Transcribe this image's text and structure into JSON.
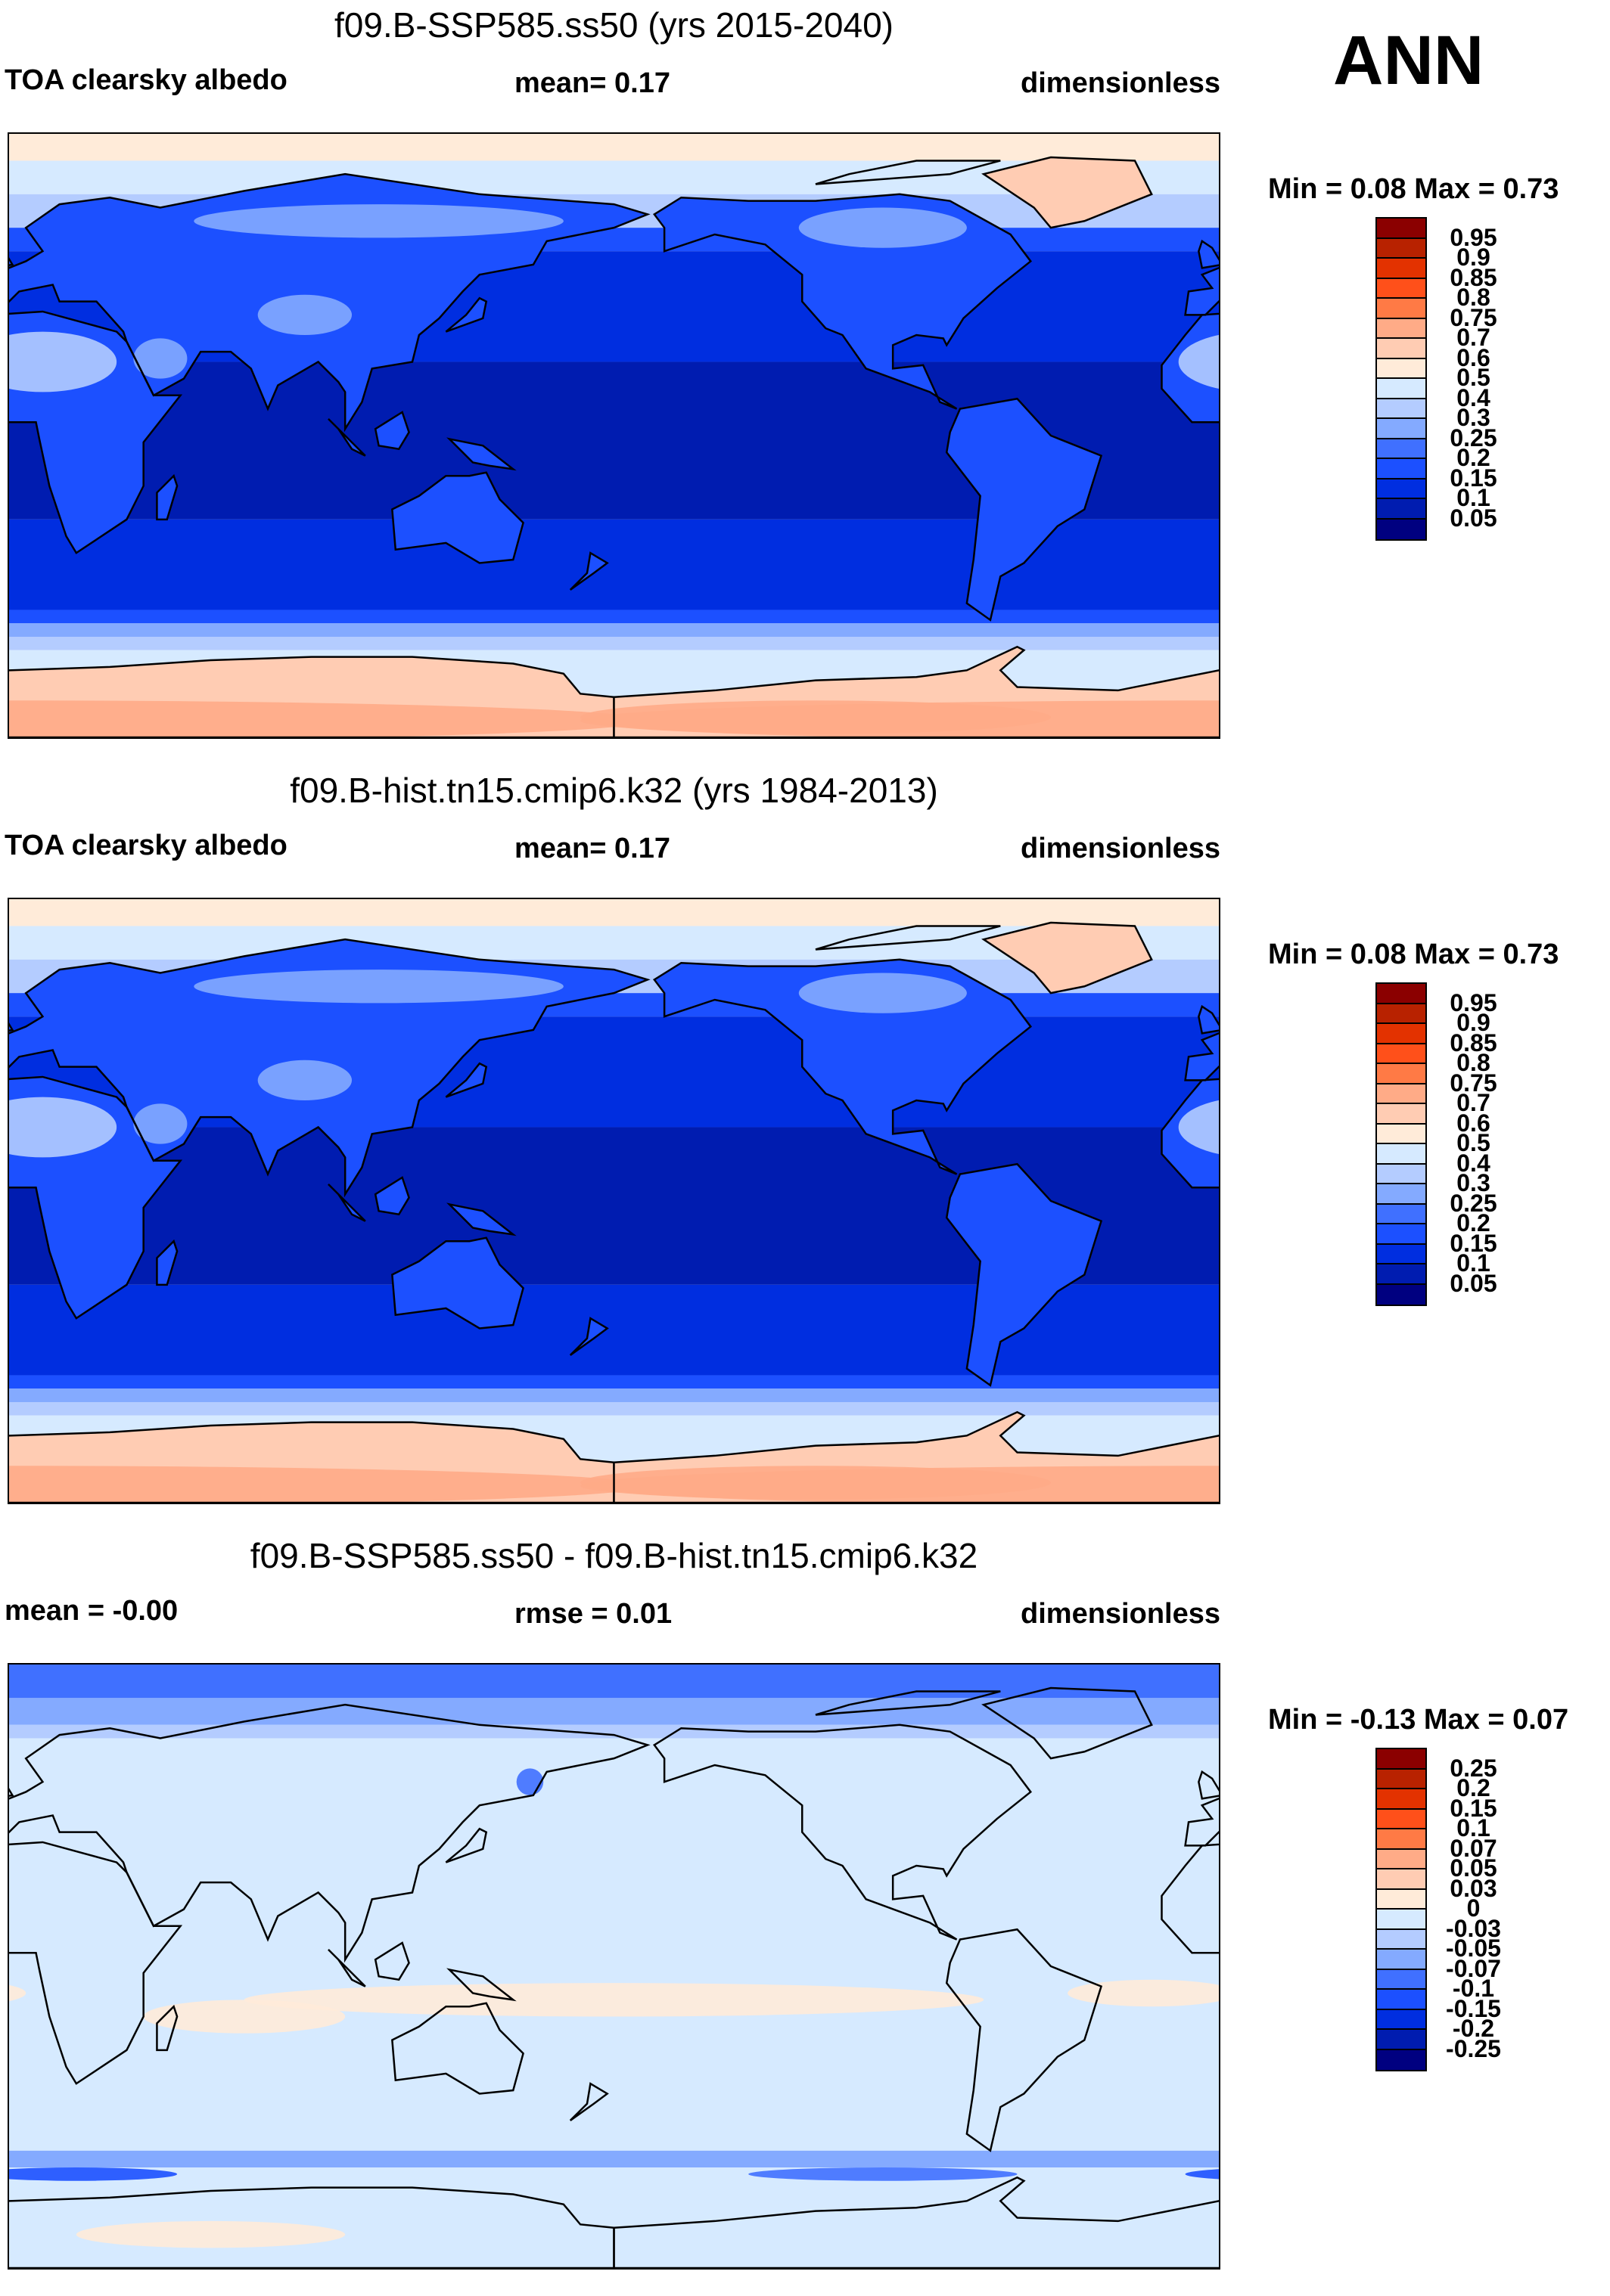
{
  "season": "ANN",
  "panels": [
    {
      "title": "f09.B-SSP585.ss50 (yrs 2015-2040)",
      "left_label": "TOA clearsky albedo",
      "mid_label": "mean=   0.17",
      "right_label": "dimensionless",
      "minmax": "Min =   0.08 Max =   0.73",
      "variant": "model"
    },
    {
      "title": "f09.B-hist.tn15.cmip6.k32 (yrs 1984-2013)",
      "left_label": "TOA clearsky albedo",
      "mid_label": "mean=   0.17",
      "right_label": "dimensionless",
      "minmax": "Min =   0.08 Max =   0.73",
      "variant": "model"
    },
    {
      "title": "f09.B-SSP585.ss50 - f09.B-hist.tn15.cmip6.k32",
      "left_label": "mean =  -0.00",
      "mid_label": "rmse =   0.01",
      "right_label": "dimensionless",
      "minmax": "Min =  -0.13 Max =   0.07",
      "variant": "diff"
    }
  ],
  "colorbars": {
    "abs_levels": [
      "0.95",
      "0.9",
      "0.85",
      "0.8",
      "0.75",
      "0.7",
      "0.6",
      "0.5",
      "0.4",
      "0.3",
      "0.25",
      "0.2",
      "0.15",
      "0.1",
      "0.05"
    ],
    "diff_levels": [
      "0.25",
      "0.2",
      "0.15",
      "0.1",
      "0.07",
      "0.05",
      "0.03",
      "0",
      "-0.03",
      "-0.05",
      "-0.07",
      "-0.1",
      "-0.15",
      "-0.2",
      "-0.25"
    ],
    "colors_top_to_bottom": [
      "#8b0000",
      "#b82200",
      "#e33200",
      "#ff501a",
      "#ff7a45",
      "#ffab87",
      "#ffccb3",
      "#ffebd9",
      "#d6eaff",
      "#b4ccff",
      "#84aaff",
      "#4070ff",
      "#1c50ff",
      "#002ee0",
      "#001cb0",
      "#000080"
    ]
  },
  "chart_data": [
    {
      "type": "heatmap",
      "title": "f09.B-SSP585.ss50 (yrs 2015-2040)",
      "variable": "TOA clearsky albedo",
      "units": "dimensionless",
      "mean": 0.17,
      "min": 0.08,
      "max": 0.73,
      "x": "longitude 0-360",
      "y": "latitude -90-90",
      "levels": [
        0.05,
        0.1,
        0.15,
        0.2,
        0.25,
        0.3,
        0.4,
        0.5,
        0.6,
        0.7,
        0.75,
        0.8,
        0.85,
        0.9,
        0.95
      ]
    },
    {
      "type": "heatmap",
      "title": "f09.B-hist.tn15.cmip6.k32 (yrs 1984-2013)",
      "variable": "TOA clearsky albedo",
      "units": "dimensionless",
      "mean": 0.17,
      "min": 0.08,
      "max": 0.73,
      "x": "longitude 0-360",
      "y": "latitude -90-90",
      "levels": [
        0.05,
        0.1,
        0.15,
        0.2,
        0.25,
        0.3,
        0.4,
        0.5,
        0.6,
        0.7,
        0.75,
        0.8,
        0.85,
        0.9,
        0.95
      ]
    },
    {
      "type": "heatmap",
      "title": "f09.B-SSP585.ss50 - f09.B-hist.tn15.cmip6.k32",
      "units": "dimensionless",
      "mean": -0.0,
      "rmse": 0.01,
      "min": -0.13,
      "max": 0.07,
      "x": "longitude 0-360",
      "y": "latitude -90-90",
      "levels": [
        -0.25,
        -0.2,
        -0.15,
        -0.1,
        -0.07,
        -0.05,
        -0.03,
        0,
        0.03,
        0.05,
        0.07,
        0.1,
        0.15,
        0.2,
        0.25
      ]
    }
  ]
}
